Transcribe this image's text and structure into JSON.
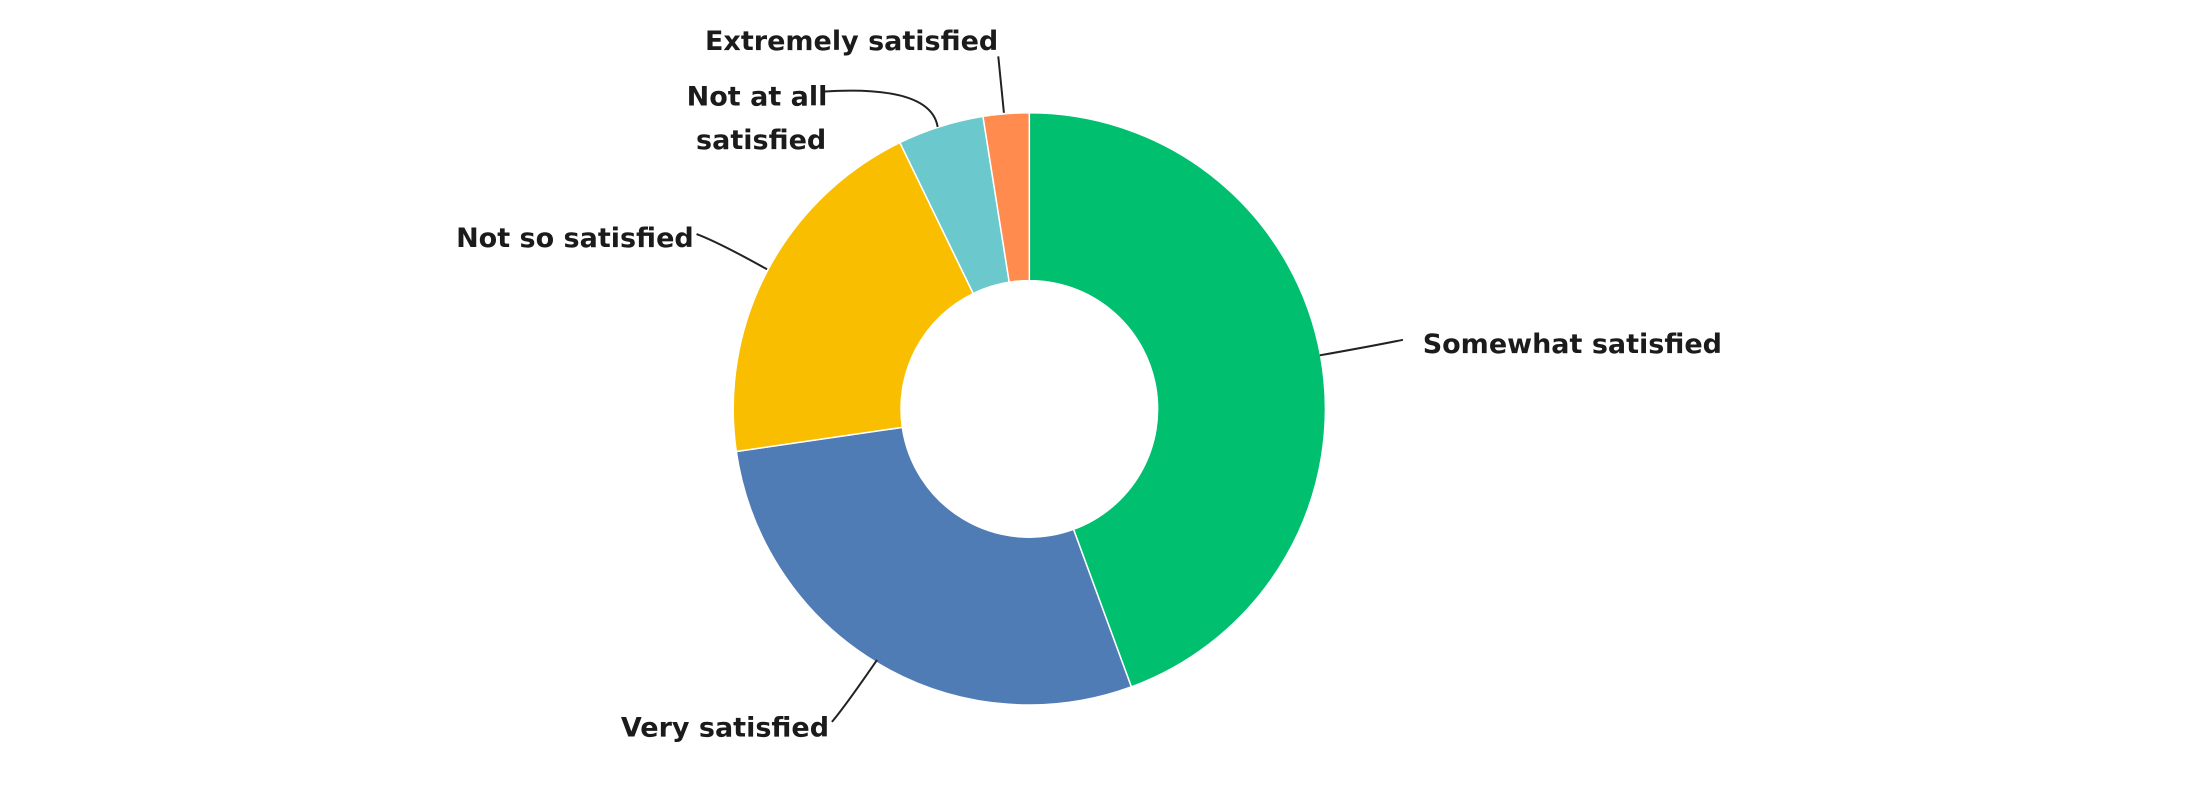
{
  "chart_data": {
    "type": "donut",
    "categories": [
      "Somewhat satisfied",
      "Very satisfied",
      "Not so satisfied",
      "Not at all satisfied",
      "Extremely satisfied"
    ],
    "values": [
      44.4,
      28.3,
      20.1,
      4.7,
      2.5
    ],
    "colors": [
      "#00bf6f",
      "#507cb6",
      "#f9be00",
      "#6bc8cd",
      "#ff8b4f"
    ]
  }
}
